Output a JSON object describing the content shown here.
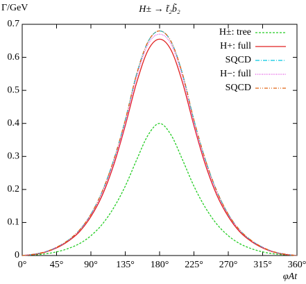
{
  "chart_data": {
    "type": "line",
    "title": "H± → t̃₂b̃₂",
    "y_label": "Γ/GeV",
    "x_label": "φAt",
    "x": [
      0,
      15,
      30,
      45,
      60,
      75,
      90,
      105,
      120,
      135,
      150,
      165,
      180,
      195,
      210,
      225,
      240,
      255,
      270,
      285,
      300,
      315,
      330,
      345,
      360
    ],
    "xlim": [
      0,
      360
    ],
    "xticks": [
      {
        "value": 0,
        "label": "0°"
      },
      {
        "value": 45,
        "label": "45°"
      },
      {
        "value": 90,
        "label": "90°"
      },
      {
        "value": 135,
        "label": "135°"
      },
      {
        "value": 180,
        "label": "180°"
      },
      {
        "value": 225,
        "label": "225°"
      },
      {
        "value": 270,
        "label": "270°"
      },
      {
        "value": 315,
        "label": "315°"
      },
      {
        "value": 360,
        "label": "360°"
      }
    ],
    "ylim": [
      0,
      0.7
    ],
    "yticks": [
      0,
      0.1,
      0.2,
      0.3,
      0.4,
      0.5,
      0.6,
      0.7
    ],
    "legend": "top-right",
    "series": [
      {
        "name": "H±: tree",
        "color": "#22cc22",
        "dash": "3,2",
        "values": [
          0,
          0.002,
          0.005,
          0.011,
          0.021,
          0.036,
          0.06,
          0.095,
          0.145,
          0.21,
          0.29,
          0.365,
          0.4,
          0.365,
          0.29,
          0.21,
          0.145,
          0.095,
          0.06,
          0.036,
          0.021,
          0.011,
          0.005,
          0.002,
          0
        ]
      },
      {
        "name": "H+:  full",
        "color": "#e02020",
        "dash": "none",
        "values": [
          0,
          0.003,
          0.01,
          0.023,
          0.043,
          0.072,
          0.118,
          0.183,
          0.275,
          0.393,
          0.524,
          0.622,
          0.655,
          0.622,
          0.524,
          0.393,
          0.275,
          0.183,
          0.118,
          0.072,
          0.043,
          0.023,
          0.01,
          0.003,
          0
        ]
      },
      {
        "name": "SQCD",
        "color": "#00c8e0",
        "dash": "6,2,1,2",
        "values": [
          0,
          0.004,
          0.011,
          0.025,
          0.046,
          0.077,
          0.125,
          0.195,
          0.29,
          0.41,
          0.55,
          0.648,
          0.68,
          0.648,
          0.55,
          0.41,
          0.29,
          0.195,
          0.125,
          0.077,
          0.046,
          0.025,
          0.011,
          0.004,
          0
        ]
      },
      {
        "name": "H−:  full",
        "color": "#e040e0",
        "dash": "1,1.5",
        "values": [
          0,
          0.004,
          0.011,
          0.025,
          0.045,
          0.076,
          0.123,
          0.19,
          0.283,
          0.4,
          0.54,
          0.64,
          0.67,
          0.64,
          0.54,
          0.4,
          0.283,
          0.19,
          0.123,
          0.076,
          0.045,
          0.025,
          0.011,
          0.004,
          0
        ]
      },
      {
        "name": "SQCD",
        "color": "#e06010",
        "dash": "5,2,1,2,1,2",
        "values": [
          0,
          0.004,
          0.011,
          0.025,
          0.046,
          0.077,
          0.125,
          0.195,
          0.29,
          0.41,
          0.55,
          0.648,
          0.68,
          0.648,
          0.55,
          0.41,
          0.29,
          0.195,
          0.125,
          0.077,
          0.046,
          0.025,
          0.011,
          0.004,
          0
        ]
      }
    ]
  }
}
